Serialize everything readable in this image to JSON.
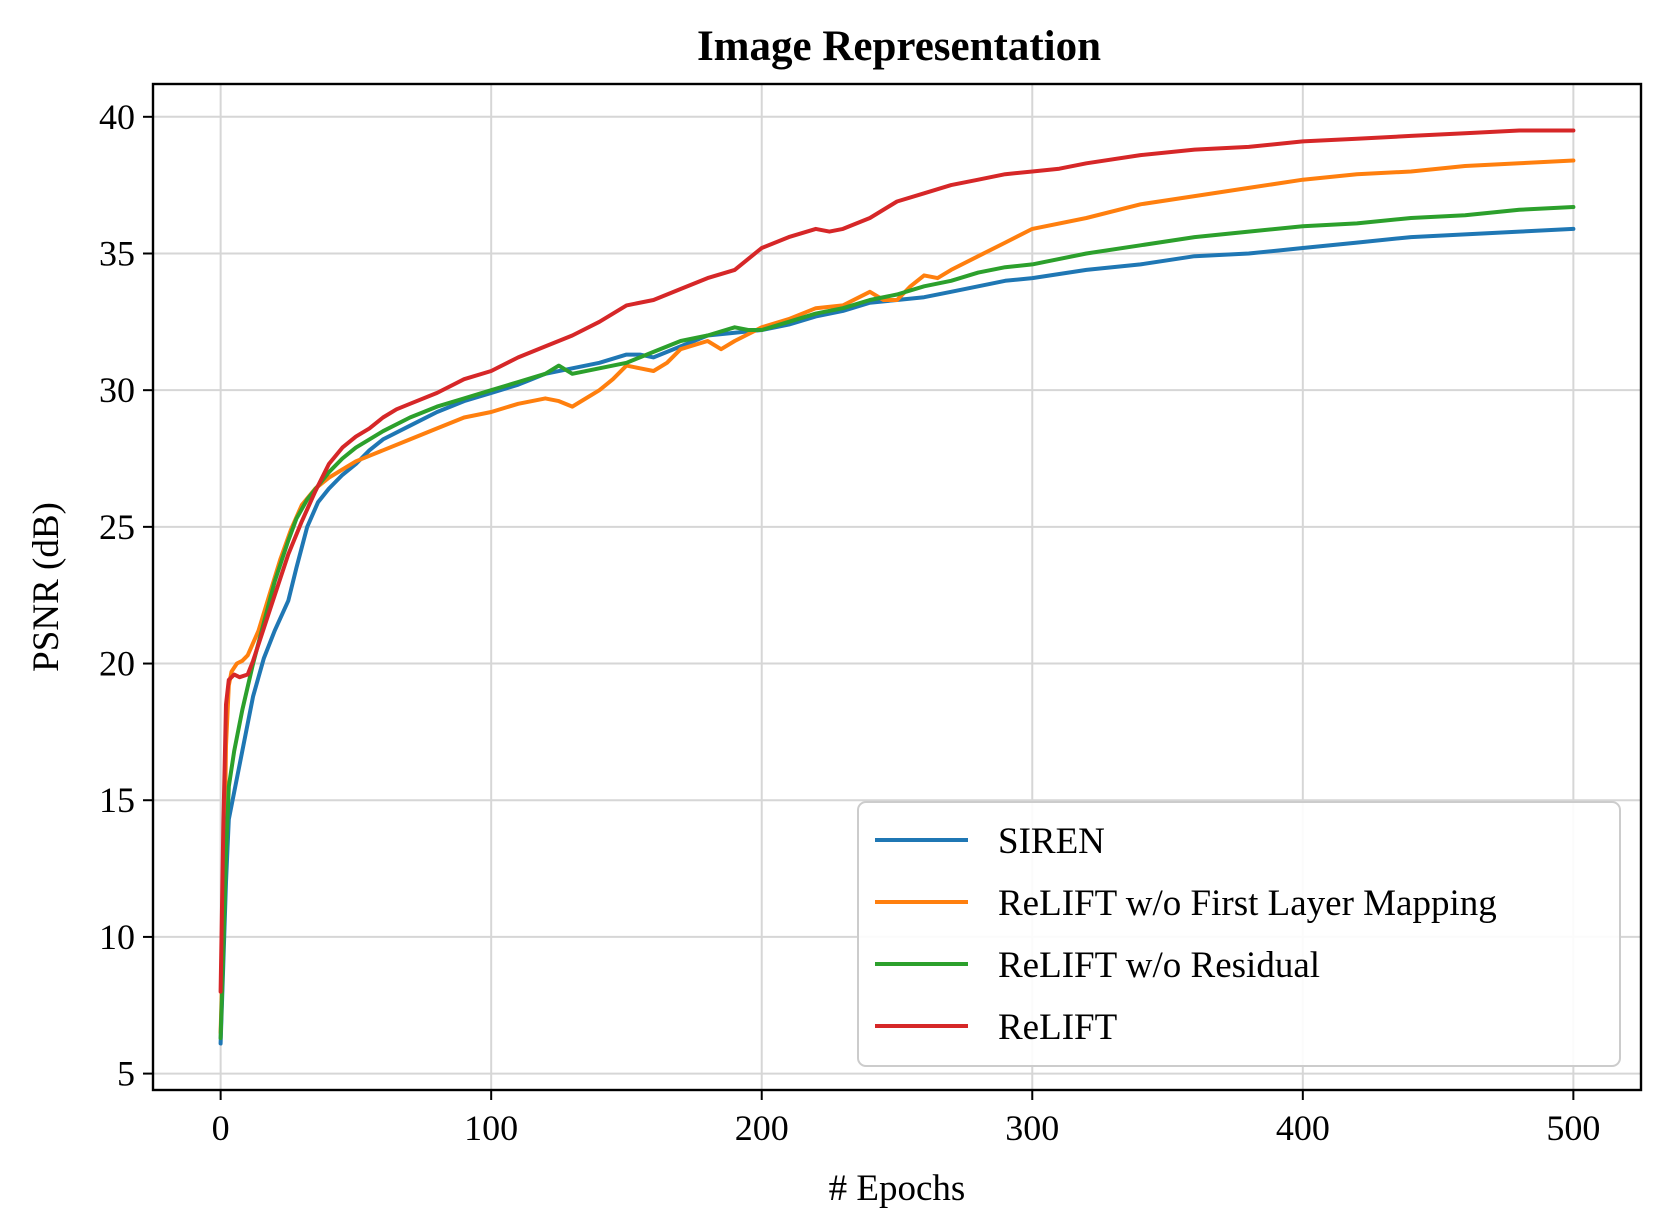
{
  "chart_data": {
    "type": "line",
    "title": "Image Representation",
    "xlabel": "# Epochs",
    "ylabel": "PSNR (dB)",
    "xlim": [
      -25,
      525
    ],
    "ylim": [
      4.4,
      41.2
    ],
    "xticks": [
      0,
      100,
      200,
      300,
      400,
      500
    ],
    "yticks": [
      5,
      10,
      15,
      20,
      25,
      30,
      35,
      40
    ],
    "xtick_labels": [
      "0",
      "100",
      "200",
      "300",
      "400",
      "500"
    ],
    "ytick_labels": [
      "5",
      "10",
      "15",
      "20",
      "25",
      "30",
      "35",
      "40"
    ],
    "grid": true,
    "legend_position": "lower-right",
    "series": [
      {
        "name": "SIREN",
        "color": "#1f77b4",
        "x": [
          0,
          1,
          2,
          3,
          5,
          8,
          12,
          16,
          20,
          25,
          28,
          32,
          36,
          40,
          45,
          50,
          55,
          60,
          70,
          80,
          90,
          100,
          110,
          120,
          130,
          140,
          150,
          155,
          160,
          170,
          180,
          190,
          200,
          210,
          220,
          230,
          240,
          250,
          260,
          270,
          280,
          290,
          300,
          320,
          340,
          360,
          380,
          400,
          420,
          440,
          460,
          480,
          500
        ],
        "y": [
          6.1,
          9.0,
          12.0,
          14.3,
          15.3,
          16.8,
          18.8,
          20.2,
          21.2,
          22.3,
          23.5,
          25.0,
          25.9,
          26.4,
          26.9,
          27.3,
          27.8,
          28.2,
          28.7,
          29.2,
          29.6,
          29.9,
          30.2,
          30.6,
          30.8,
          31.0,
          31.3,
          31.3,
          31.2,
          31.6,
          32.0,
          32.1,
          32.2,
          32.4,
          32.7,
          32.9,
          33.2,
          33.3,
          33.4,
          33.6,
          33.8,
          34.0,
          34.1,
          34.4,
          34.6,
          34.9,
          35.0,
          35.2,
          35.4,
          35.6,
          35.7,
          35.8,
          35.9
        ]
      },
      {
        "name": "ReLIFT w/o First Layer Mapping",
        "color": "#ff7f0e",
        "x": [
          0,
          1,
          2,
          3,
          4,
          6,
          8,
          10,
          14,
          18,
          22,
          26,
          30,
          35,
          40,
          45,
          50,
          55,
          60,
          70,
          80,
          90,
          100,
          110,
          120,
          125,
          130,
          135,
          140,
          145,
          150,
          155,
          160,
          165,
          170,
          180,
          185,
          190,
          200,
          210,
          220,
          230,
          240,
          245,
          250,
          255,
          260,
          265,
          270,
          280,
          290,
          300,
          320,
          340,
          360,
          380,
          400,
          420,
          440,
          460,
          480,
          500
        ],
        "y": [
          6.5,
          10.0,
          17.0,
          19.2,
          19.7,
          20.0,
          20.1,
          20.3,
          21.2,
          22.5,
          23.8,
          24.9,
          25.8,
          26.4,
          26.8,
          27.1,
          27.4,
          27.6,
          27.8,
          28.2,
          28.6,
          29.0,
          29.2,
          29.5,
          29.7,
          29.6,
          29.4,
          29.7,
          30.0,
          30.4,
          30.9,
          30.8,
          30.7,
          31.0,
          31.5,
          31.8,
          31.5,
          31.8,
          32.3,
          32.6,
          33.0,
          33.1,
          33.6,
          33.3,
          33.3,
          33.8,
          34.2,
          34.1,
          34.4,
          34.9,
          35.4,
          35.9,
          36.3,
          36.8,
          37.1,
          37.4,
          37.7,
          37.9,
          38.0,
          38.2,
          38.3,
          38.4
        ]
      },
      {
        "name": "ReLIFT w/o Residual",
        "color": "#2ca02c",
        "x": [
          0,
          1,
          2,
          3,
          5,
          8,
          12,
          16,
          20,
          25,
          28,
          32,
          36,
          40,
          45,
          50,
          55,
          60,
          70,
          80,
          90,
          100,
          110,
          120,
          125,
          130,
          140,
          150,
          160,
          170,
          180,
          190,
          195,
          200,
          210,
          220,
          230,
          240,
          250,
          260,
          270,
          280,
          290,
          300,
          305,
          320,
          340,
          360,
          380,
          400,
          420,
          440,
          460,
          480,
          500
        ],
        "y": [
          6.3,
          9.5,
          13.0,
          15.5,
          16.8,
          18.3,
          20.0,
          21.5,
          23.0,
          24.5,
          25.3,
          26.0,
          26.5,
          27.0,
          27.5,
          27.9,
          28.2,
          28.5,
          29.0,
          29.4,
          29.7,
          30.0,
          30.3,
          30.6,
          30.9,
          30.6,
          30.8,
          31.0,
          31.4,
          31.8,
          32.0,
          32.3,
          32.2,
          32.2,
          32.5,
          32.8,
          33.0,
          33.3,
          33.5,
          33.8,
          34.0,
          34.3,
          34.5,
          34.6,
          34.7,
          35.0,
          35.3,
          35.6,
          35.8,
          36.0,
          36.1,
          36.3,
          36.4,
          36.6,
          36.7
        ]
      },
      {
        "name": "ReLIFT",
        "color": "#d62728",
        "x": [
          0,
          1,
          2,
          3,
          5,
          7,
          10,
          12,
          16,
          20,
          25,
          30,
          35,
          40,
          45,
          50,
          55,
          60,
          65,
          70,
          80,
          90,
          100,
          110,
          120,
          130,
          140,
          150,
          160,
          170,
          180,
          190,
          200,
          210,
          220,
          225,
          230,
          240,
          250,
          260,
          270,
          280,
          290,
          300,
          310,
          320,
          340,
          360,
          380,
          400,
          420,
          440,
          460,
          480,
          500
        ],
        "y": [
          8.0,
          14.0,
          18.5,
          19.4,
          19.6,
          19.5,
          19.6,
          20.1,
          21.3,
          22.5,
          24.0,
          25.2,
          26.3,
          27.3,
          27.9,
          28.3,
          28.6,
          29.0,
          29.3,
          29.5,
          29.9,
          30.4,
          30.7,
          31.2,
          31.6,
          32.0,
          32.5,
          33.1,
          33.3,
          33.7,
          34.1,
          34.4,
          35.2,
          35.6,
          35.9,
          35.8,
          35.9,
          36.3,
          36.9,
          37.2,
          37.5,
          37.7,
          37.9,
          38.0,
          38.1,
          38.3,
          38.6,
          38.8,
          38.9,
          39.1,
          39.2,
          39.3,
          39.4,
          39.5,
          39.5
        ]
      }
    ]
  }
}
